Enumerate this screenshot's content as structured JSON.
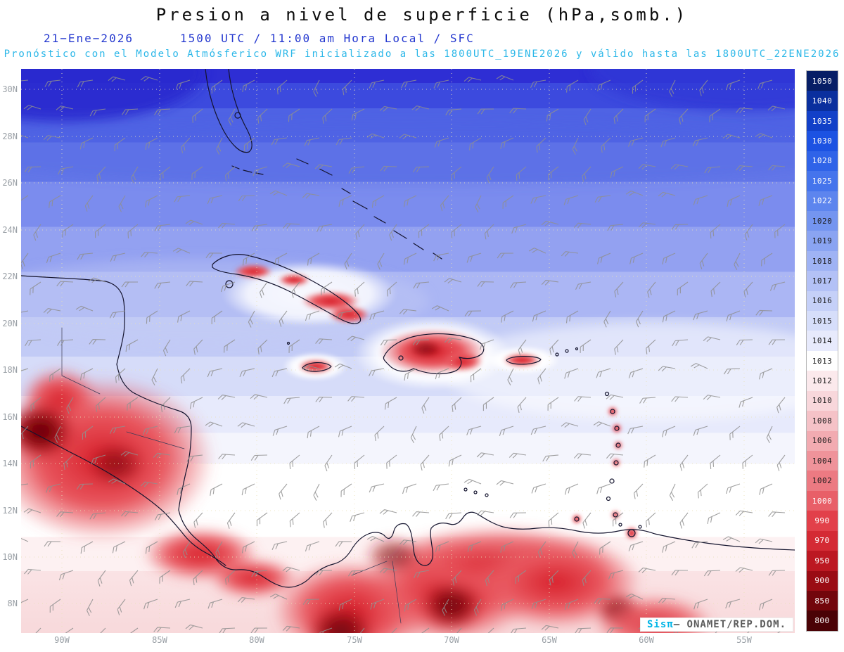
{
  "header": {
    "title": "Presion a nivel de superficie (hPa,somb.)",
    "date": "21−Ene−2026",
    "time": "1500 UTC / 11:00 am Hora Local / SFC",
    "forecast": "Pronóstico con el Modelo Atmósferico WRF inicializado a las 1800UTC_19ENE2026 y válido hasta las  1800UTC_22ENE2026"
  },
  "watermark": {
    "brand": "Sisπ",
    "org": "— ONAMET/REP.DOM."
  },
  "chart_data": {
    "type": "heatmap",
    "title": "Presion a nivel de superficie (hPa,somb.)",
    "field": "Presion a nivel de superficie",
    "units": "hPa",
    "model": "WRF",
    "valid_date": "21−Ene−2026",
    "valid_time": "1500 UTC / 11:00 am Hora Local / SFC",
    "init_time": "1800UTC_19ENE2026",
    "valid_until": "1800UTC_22ENE2026",
    "lat_ticks": [
      "30N",
      "28N",
      "26N",
      "24N",
      "22N",
      "20N",
      "18N",
      "16N",
      "14N",
      "12N",
      "10N",
      "8N"
    ],
    "lon_ticks": [
      "90W",
      "85W",
      "80W",
      "75W",
      "70W",
      "65W",
      "60W",
      "55W"
    ],
    "colorbar_levels": [
      1050,
      1040,
      1035,
      1030,
      1028,
      1025,
      1022,
      1020,
      1019,
      1018,
      1017,
      1016,
      1015,
      1014,
      1013,
      1012,
      1010,
      1008,
      1006,
      1004,
      1002,
      1000,
      990,
      970,
      950,
      900,
      850,
      800
    ],
    "colorbar_colors": [
      "#071e66",
      "#0a2f9e",
      "#1240c8",
      "#1c52e2",
      "#2f63e8",
      "#4574ec",
      "#5d85ee",
      "#7495f0",
      "#8aa4f2",
      "#9fb3f4",
      "#b3c1f6",
      "#c5d0f8",
      "#d6defa",
      "#e7eafc",
      "#ffffff",
      "#fbe9ec",
      "#f8d7db",
      "#f5c2c7",
      "#f2abb1",
      "#ef939a",
      "#ec7a82",
      "#e85f68",
      "#e2404a",
      "#d42a34",
      "#bc1822",
      "#9a0c14",
      "#72060c",
      "#4a0206"
    ],
    "overlay": "wind barbs (gray)",
    "field_pattern": "High pressure (blue, 1016–1030 hPa) over the Atlantic north of the Antilles, near 1013–1015 hPa (white) across the central Caribbean, and low pressure minima (red, below 1010 hPa) over Central America, island interiors of the Greater Antilles, and northern South America."
  }
}
